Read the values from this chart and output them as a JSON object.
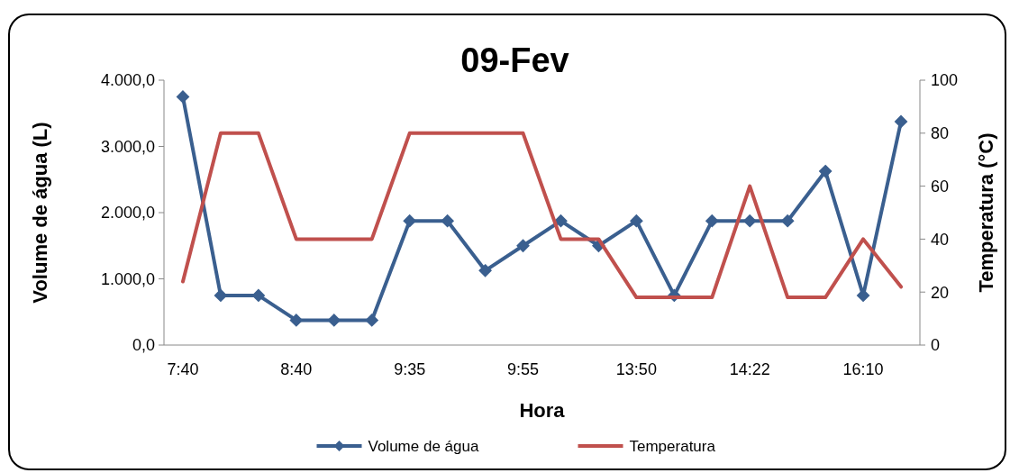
{
  "chart_data": {
    "type": "line",
    "title": "09-Fev",
    "xlabel": "Hora",
    "ylabel": "Volume de água (L)",
    "y2label": "Temperatura (°C)",
    "categories": [
      "7:40",
      null,
      null,
      "8:40",
      null,
      null,
      "9:35",
      null,
      null,
      "9:55",
      null,
      null,
      "13:50",
      null,
      null,
      "14:22",
      null,
      null,
      "16:10",
      null
    ],
    "series": [
      {
        "name": "Volume de água",
        "color": "#3a5f8f",
        "marker": "diamond",
        "values": [
          3750,
          750,
          750,
          375,
          375,
          375,
          1875,
          1875,
          1125,
          1500,
          1875,
          1500,
          1875,
          750,
          1875,
          1875,
          1875,
          2625,
          750,
          3375
        ]
      },
      {
        "name": "Temperatura",
        "color": "#c0504d",
        "axis": "y2",
        "marker": "none",
        "values": [
          24,
          80,
          80,
          40,
          40,
          40,
          80,
          80,
          80,
          80,
          40,
          40,
          18,
          18,
          18,
          60,
          18,
          18,
          40,
          22
        ]
      }
    ],
    "ylim": [
      0,
      4000
    ],
    "yticks": [
      {
        "value": 0,
        "label": "0,0"
      },
      {
        "value": 1000,
        "label": "1.000,0"
      },
      {
        "value": 2000,
        "label": "2.000,0"
      },
      {
        "value": 3000,
        "label": "3.000,0"
      },
      {
        "value": 4000,
        "label": "4.000,0"
      }
    ],
    "y2lim": [
      0,
      100
    ],
    "y2ticks": [
      0,
      20,
      40,
      60,
      80,
      100
    ],
    "grid": false,
    "legend": "bottom"
  }
}
